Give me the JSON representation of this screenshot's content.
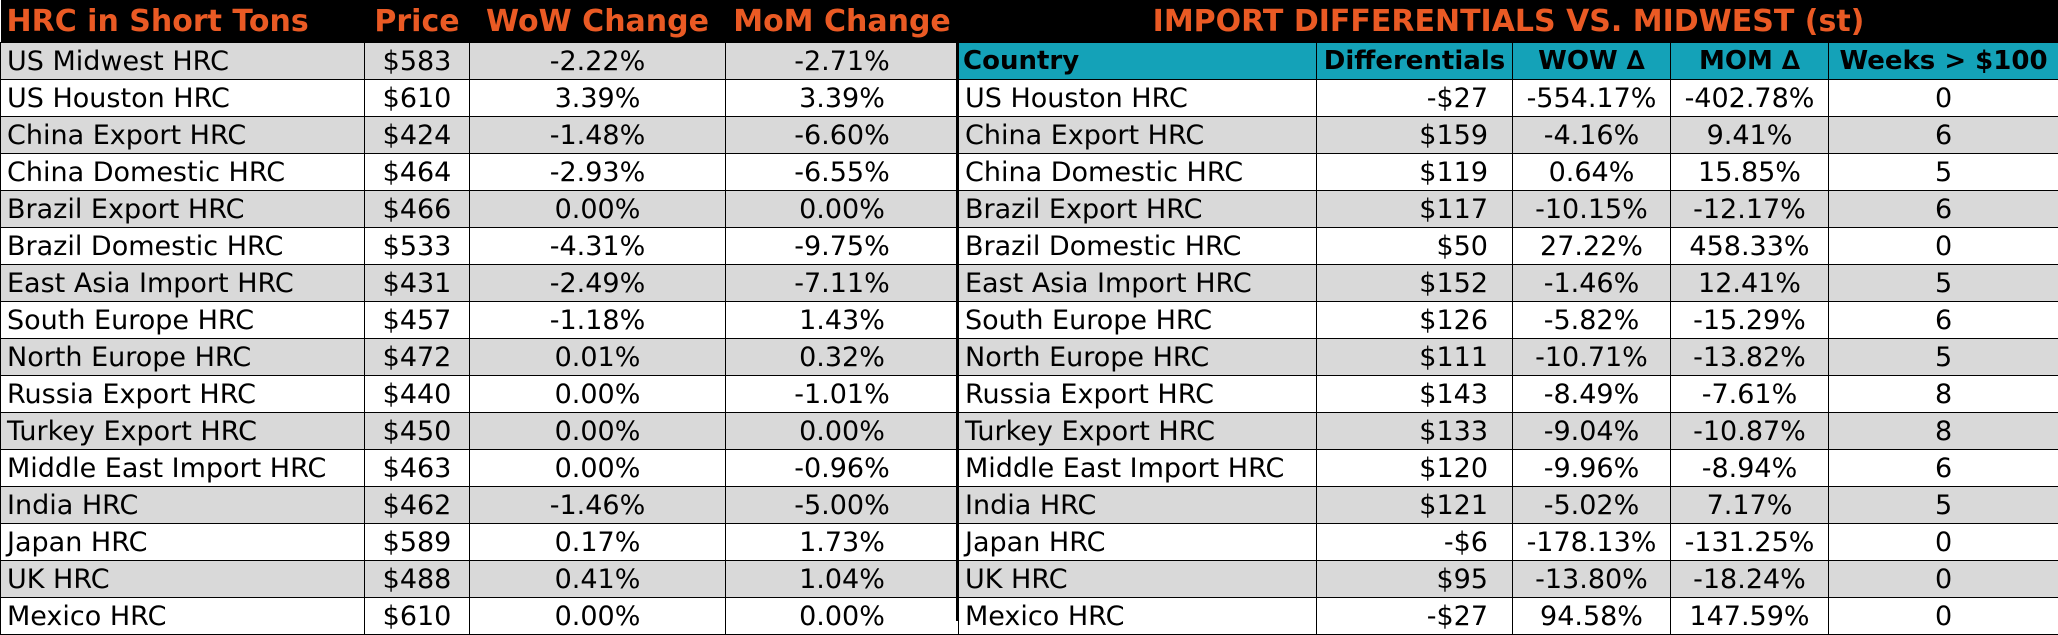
{
  "left_table": {
    "headers": [
      "HRC in Short Tons",
      "Price",
      "WoW Change",
      "MoM Change"
    ],
    "rows": [
      [
        "US Midwest HRC",
        "$583",
        "-2.22%",
        "-2.71%"
      ],
      [
        "US Houston HRC",
        "$610",
        "3.39%",
        "3.39%"
      ],
      [
        "China Export HRC",
        "$424",
        "-1.48%",
        "-6.60%"
      ],
      [
        "China Domestic HRC",
        "$464",
        "-2.93%",
        "-6.55%"
      ],
      [
        "Brazil Export HRC",
        "$466",
        "0.00%",
        "0.00%"
      ],
      [
        "Brazil Domestic HRC",
        "$533",
        "-4.31%",
        "-9.75%"
      ],
      [
        "East Asia Import HRC",
        "$431",
        "-2.49%",
        "-7.11%"
      ],
      [
        "South Europe HRC",
        "$457",
        "-1.18%",
        "1.43%"
      ],
      [
        "North Europe HRC",
        "$472",
        "0.01%",
        "0.32%"
      ],
      [
        "Russia Export HRC",
        "$440",
        "0.00%",
        "-1.01%"
      ],
      [
        "Turkey Export HRC",
        "$450",
        "0.00%",
        "0.00%"
      ],
      [
        "Middle East Import HRC",
        "$463",
        "0.00%",
        "-0.96%"
      ],
      [
        "India HRC",
        "$462",
        "-1.46%",
        "-5.00%"
      ],
      [
        "Japan HRC",
        "$589",
        "0.17%",
        "1.73%"
      ],
      [
        "UK HRC",
        "$488",
        "0.41%",
        "1.04%"
      ],
      [
        "Mexico HRC",
        "$610",
        "0.00%",
        "0.00%"
      ]
    ]
  },
  "right_table": {
    "title": "IMPORT DIFFERENTIALS VS. MIDWEST (st)",
    "headers": [
      "Country",
      "Differentials",
      "WOW ∆",
      "MOM ∆",
      "Weeks > $100"
    ],
    "rows": [
      [
        "US Houston HRC",
        "-$27",
        "-554.17%",
        "-402.78%",
        "0"
      ],
      [
        "China Export HRC",
        "$159",
        "-4.16%",
        "9.41%",
        "6"
      ],
      [
        "China Domestic HRC",
        "$119",
        "0.64%",
        "15.85%",
        "5"
      ],
      [
        "Brazil Export HRC",
        "$117",
        "-10.15%",
        "-12.17%",
        "6"
      ],
      [
        "Brazil Domestic HRC",
        "$50",
        "27.22%",
        "458.33%",
        "0"
      ],
      [
        "East Asia Import HRC",
        "$152",
        "-1.46%",
        "12.41%",
        "5"
      ],
      [
        "South Europe HRC",
        "$126",
        "-5.82%",
        "-15.29%",
        "6"
      ],
      [
        "North Europe HRC",
        "$111",
        "-10.71%",
        "-13.82%",
        "5"
      ],
      [
        "Russia Export HRC",
        "$143",
        "-8.49%",
        "-7.61%",
        "8"
      ],
      [
        "Turkey Export HRC",
        "$133",
        "-9.04%",
        "-10.87%",
        "8"
      ],
      [
        "Middle East Import HRC",
        "$120",
        "-9.96%",
        "-8.94%",
        "6"
      ],
      [
        "India HRC",
        "$121",
        "-5.02%",
        "7.17%",
        "5"
      ],
      [
        "Japan HRC",
        "-$6",
        "-178.13%",
        "-131.25%",
        "0"
      ],
      [
        "UK HRC",
        "$95",
        "-13.80%",
        "-18.24%",
        "0"
      ],
      [
        "Mexico HRC",
        "-$27",
        "94.58%",
        "147.59%",
        "0"
      ]
    ]
  },
  "colors": {
    "header_bg": "#000000",
    "header_text": "#ea5a24",
    "subheader_bg": "#14a2b8",
    "row_alt_bg": "#d9d9d9"
  }
}
